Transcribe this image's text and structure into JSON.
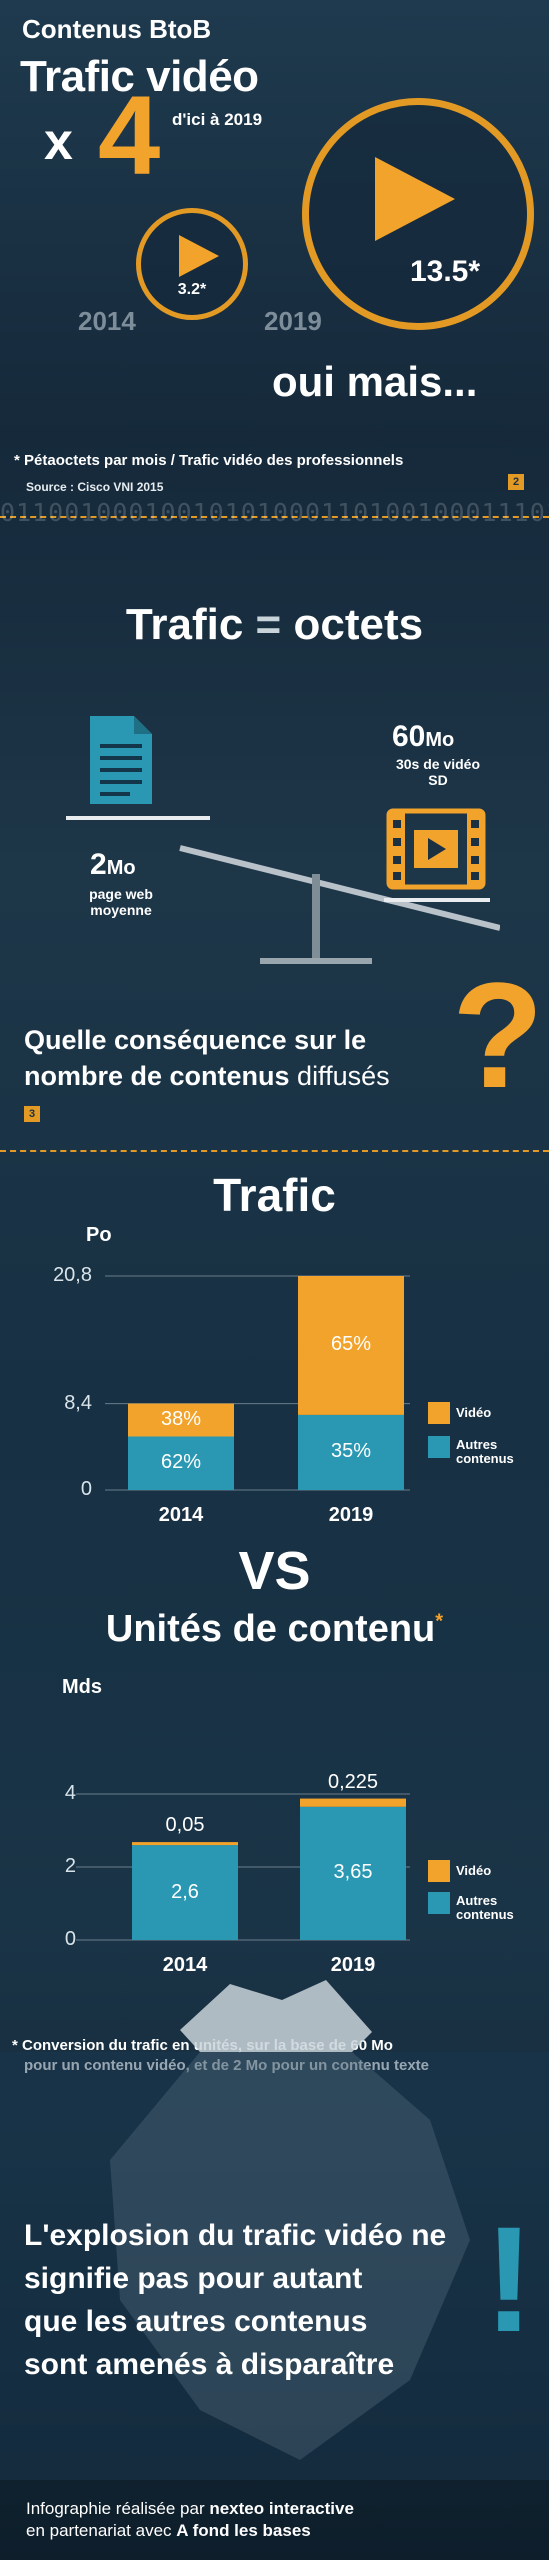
{
  "hero": {
    "kicker": "Contenus BtoB",
    "title": "Trafic vidéo",
    "multiplier_x": "x",
    "multiplier_n": "4",
    "period": "d'ici à 2019",
    "bubble_small": "3.2*",
    "bubble_large": "13.5*",
    "year_left": "2014",
    "year_right": "2019",
    "tagline": "oui mais...",
    "footnote": "* Pétaoctets par mois / Trafic vidéo des professionnels",
    "source": "Source : Cisco VNI 2015"
  },
  "section2": {
    "number": "2",
    "binary": "01100100010010101000110100100011101",
    "title_a": "Trafic",
    "title_eq": "=",
    "title_b": "octets",
    "left_value": "2",
    "left_unit": "Mo",
    "left_desc": "page web moyenne",
    "right_value": "60",
    "right_unit": "Mo",
    "right_desc": "30s de vidéo SD",
    "question_l1": "Quelle conséquence sur le",
    "question_l2a": "nombre de contenus",
    "question_l2b": "diffusés",
    "qmark": "?"
  },
  "section3": {
    "number": "3",
    "vs": "VS",
    "conversion_note_l1": "* Conversion du trafic en unités, sur la base de 60 Mo",
    "conversion_note_l2": "pour un contenu vidéo, et de 2 Mo pour un contenu texte",
    "conclusion": [
      "L'explosion du trafic vidéo ne",
      "signifie pas pour autant",
      "que les autres contenus",
      "sont amenés à disparaître"
    ],
    "exclam": "!",
    "credit_l1a": "Infographie réalisée par ",
    "credit_l1b": "nexteo interactive",
    "credit_l2a": "en partenariat avec ",
    "credit_l2b": "A fond les bases"
  },
  "colors": {
    "orange": "#f2a32c",
    "teal": "#2a98b3",
    "bg": "#15293a"
  },
  "chart_data": [
    {
      "type": "bar",
      "stacked": true,
      "title": "Trafic",
      "ylabel": "Po",
      "categories": [
        "2014",
        "2019"
      ],
      "yticks": [
        "0",
        "8,4",
        "20,8"
      ],
      "ylim": [
        0,
        20.8
      ],
      "totals": [
        8.4,
        20.8
      ],
      "series": [
        {
          "name": "Autres contenus",
          "color": "#2a98b3",
          "share_labels": [
            "62%",
            "35%"
          ],
          "values": [
            5.2,
            7.3
          ]
        },
        {
          "name": "Vidéo",
          "color": "#f2a32c",
          "share_labels": [
            "38%",
            "65%"
          ],
          "values": [
            3.2,
            13.5
          ]
        }
      ]
    },
    {
      "type": "bar",
      "stacked": true,
      "title": "Unités de contenu",
      "title_mark": "*",
      "ylabel": "Mds",
      "categories": [
        "2014",
        "2019"
      ],
      "yticks": [
        "0",
        "2",
        "4"
      ],
      "ylim": [
        0,
        4
      ],
      "series": [
        {
          "name": "Autres contenus",
          "color": "#2a98b3",
          "labels": [
            "2,6",
            "3,65"
          ],
          "values": [
            2.6,
            3.65
          ]
        },
        {
          "name": "Vidéo",
          "color": "#f2a32c",
          "labels": [
            "0,05",
            "0,225"
          ],
          "values": [
            0.05,
            0.225
          ]
        }
      ]
    }
  ]
}
